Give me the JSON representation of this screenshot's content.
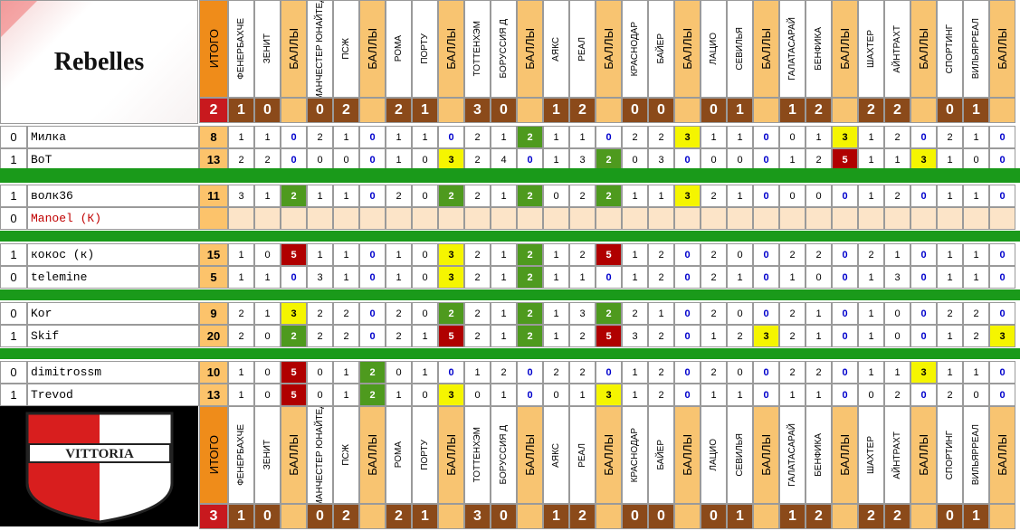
{
  "team_top": "Rebelles",
  "team_bottom_logo_text": "VITTORIA",
  "header": {
    "itogo": "ИТОГО",
    "ball_label": "БАЛЛЫ",
    "teams": [
      [
        "ФЕНЕРБАХЧЕ",
        "ЗЕНИТ"
      ],
      [
        "МАНЧЕСТЕР ЮНАЙТЕД",
        "ПСЖ"
      ],
      [
        "РОМА",
        "ПОРТУ"
      ],
      [
        "ТОТТЕНХЭМ",
        "БОРУССИЯ Д"
      ],
      [
        "АЯКС",
        "РЕАЛ"
      ],
      [
        "КРАСНОДАР",
        "БАЙЕР"
      ],
      [
        "ЛАЦИО",
        "СЕВИЛЬЯ"
      ],
      [
        "ГАЛАТАСАРАЙ",
        "БЕНФИКА"
      ],
      [
        "ШАХТЕР",
        "АЙНТРАХТ"
      ],
      [
        "СПОРТИНГ",
        "ВИЛЬЯРРЕАЛ"
      ]
    ],
    "scores": [
      [
        "1",
        "0"
      ],
      [
        "0",
        "2"
      ],
      [
        "2",
        "1"
      ],
      [
        "3",
        "0"
      ],
      [
        "1",
        "2"
      ],
      [
        "0",
        "0"
      ],
      [
        "0",
        "1"
      ],
      [
        "1",
        "2"
      ],
      [
        "2",
        "2"
      ],
      [
        "0",
        "1"
      ]
    ],
    "top_total": "2",
    "bottom_total": "3"
  },
  "groups": [
    [
      {
        "r": "0",
        "name": "Милка",
        "total": "8",
        "red": false,
        "m": [
          [
            "1",
            "1",
            "0"
          ],
          [
            "2",
            "1",
            "0"
          ],
          [
            "1",
            "1",
            "0"
          ],
          [
            "2",
            "1",
            "2"
          ],
          [
            "1",
            "1",
            "0"
          ],
          [
            "2",
            "2",
            "3"
          ],
          [
            "1",
            "1",
            "0"
          ],
          [
            "0",
            "1",
            "3"
          ],
          [
            "1",
            "2",
            "0"
          ],
          [
            "2",
            "1",
            "0"
          ]
        ]
      },
      {
        "r": "1",
        "name": "BoT",
        "total": "13",
        "red": false,
        "m": [
          [
            "2",
            "2",
            "0"
          ],
          [
            "0",
            "0",
            "0"
          ],
          [
            "1",
            "0",
            "3"
          ],
          [
            "2",
            "4",
            "0"
          ],
          [
            "1",
            "3",
            "2"
          ],
          [
            "0",
            "3",
            "0"
          ],
          [
            "0",
            "0",
            "0"
          ],
          [
            "1",
            "2",
            "5"
          ],
          [
            "1",
            "1",
            "3"
          ],
          [
            "1",
            "0",
            "0"
          ]
        ]
      }
    ],
    [
      {
        "r": "1",
        "name": "волк36",
        "total": "11",
        "red": false,
        "m": [
          [
            "3",
            "1",
            "2"
          ],
          [
            "1",
            "1",
            "0"
          ],
          [
            "2",
            "0",
            "2"
          ],
          [
            "2",
            "1",
            "2"
          ],
          [
            "0",
            "2",
            "2"
          ],
          [
            "1",
            "1",
            "3"
          ],
          [
            "2",
            "1",
            "0"
          ],
          [
            "0",
            "0",
            "0"
          ],
          [
            "1",
            "2",
            "0"
          ],
          [
            "1",
            "1",
            "0"
          ]
        ]
      },
      {
        "r": "0",
        "name": "Manoel (К)",
        "total": "",
        "red": true,
        "m": []
      }
    ],
    [
      {
        "r": "1",
        "name": "кокос (к)",
        "total": "15",
        "red": false,
        "m": [
          [
            "1",
            "0",
            "5"
          ],
          [
            "1",
            "1",
            "0"
          ],
          [
            "1",
            "0",
            "3"
          ],
          [
            "2",
            "1",
            "2"
          ],
          [
            "1",
            "2",
            "5"
          ],
          [
            "1",
            "2",
            "0"
          ],
          [
            "2",
            "0",
            "0"
          ],
          [
            "2",
            "2",
            "0"
          ],
          [
            "2",
            "1",
            "0"
          ],
          [
            "1",
            "1",
            "0"
          ]
        ]
      },
      {
        "r": "0",
        "name": "telemine",
        "total": "5",
        "red": false,
        "m": [
          [
            "1",
            "1",
            "0"
          ],
          [
            "3",
            "1",
            "0"
          ],
          [
            "1",
            "0",
            "3"
          ],
          [
            "2",
            "1",
            "2"
          ],
          [
            "1",
            "1",
            "0"
          ],
          [
            "1",
            "2",
            "0"
          ],
          [
            "2",
            "1",
            "0"
          ],
          [
            "1",
            "0",
            "0"
          ],
          [
            "1",
            "3",
            "0"
          ],
          [
            "1",
            "1",
            "0"
          ]
        ]
      }
    ],
    [
      {
        "r": "0",
        "name": "Kor",
        "total": "9",
        "red": false,
        "m": [
          [
            "2",
            "1",
            "3"
          ],
          [
            "2",
            "2",
            "0"
          ],
          [
            "2",
            "0",
            "2"
          ],
          [
            "2",
            "1",
            "2"
          ],
          [
            "1",
            "3",
            "2"
          ],
          [
            "2",
            "1",
            "0"
          ],
          [
            "2",
            "0",
            "0"
          ],
          [
            "2",
            "1",
            "0"
          ],
          [
            "1",
            "0",
            "0"
          ],
          [
            "2",
            "2",
            "0"
          ]
        ]
      },
      {
        "r": "1",
        "name": "Skif",
        "total": "20",
        "red": false,
        "m": [
          [
            "2",
            "0",
            "2"
          ],
          [
            "2",
            "2",
            "0"
          ],
          [
            "2",
            "1",
            "5"
          ],
          [
            "2",
            "1",
            "2"
          ],
          [
            "1",
            "2",
            "5"
          ],
          [
            "3",
            "2",
            "0"
          ],
          [
            "1",
            "2",
            "3"
          ],
          [
            "2",
            "1",
            "0"
          ],
          [
            "1",
            "0",
            "0"
          ],
          [
            "1",
            "2",
            "3"
          ]
        ]
      }
    ],
    [
      {
        "r": "0",
        "name": "dimitrossm",
        "total": "10",
        "red": false,
        "m": [
          [
            "1",
            "0",
            "5"
          ],
          [
            "0",
            "1",
            "2"
          ],
          [
            "0",
            "1",
            "0"
          ],
          [
            "1",
            "2",
            "0"
          ],
          [
            "2",
            "2",
            "0"
          ],
          [
            "1",
            "2",
            "0"
          ],
          [
            "2",
            "0",
            "0"
          ],
          [
            "2",
            "2",
            "0"
          ],
          [
            "1",
            "1",
            "3"
          ],
          [
            "1",
            "1",
            "0"
          ]
        ]
      },
      {
        "r": "1",
        "name": "Trevod",
        "total": "13",
        "red": false,
        "m": [
          [
            "1",
            "0",
            "5"
          ],
          [
            "0",
            "1",
            "2"
          ],
          [
            "1",
            "0",
            "3"
          ],
          [
            "0",
            "1",
            "0"
          ],
          [
            "0",
            "1",
            "3"
          ],
          [
            "1",
            "2",
            "0"
          ],
          [
            "1",
            "1",
            "0"
          ],
          [
            "1",
            "1",
            "0"
          ],
          [
            "0",
            "2",
            "0"
          ],
          [
            "2",
            "0",
            "0"
          ]
        ]
      }
    ]
  ]
}
